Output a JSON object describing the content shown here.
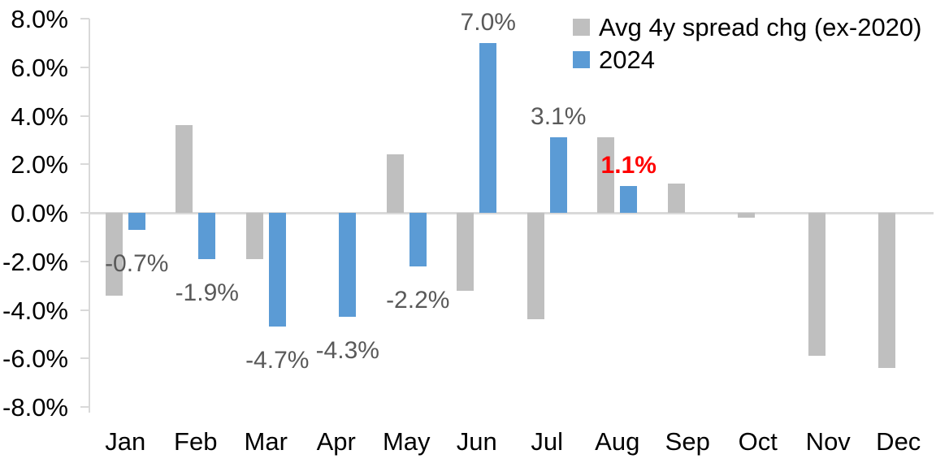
{
  "chart_data": {
    "type": "bar",
    "categories": [
      "Jan",
      "Feb",
      "Mar",
      "Apr",
      "May",
      "Jun",
      "Jul",
      "Aug",
      "Sep",
      "Oct",
      "Nov",
      "Dec"
    ],
    "series": [
      {
        "name": "Avg 4y spread chg (ex-2020)",
        "color": "#BFBFBF",
        "values": [
          -3.4,
          3.6,
          -1.9,
          0,
          2.4,
          -3.2,
          -4.4,
          3.1,
          1.2,
          -0.2,
          -5.9,
          -6.4
        ]
      },
      {
        "name": "2024",
        "color": "#5B9BD5",
        "values": [
          -0.7,
          -1.9,
          -4.7,
          -4.3,
          -2.2,
          7.0,
          3.1,
          1.1,
          null,
          null,
          null,
          null
        ],
        "data_labels": [
          {
            "text": "-0.7%"
          },
          {
            "text": "-1.9%"
          },
          {
            "text": "-4.7%"
          },
          {
            "text": "-4.3%"
          },
          {
            "text": "-2.2%"
          },
          {
            "text": "7.0%"
          },
          {
            "text": "3.1%"
          },
          {
            "text": "1.1%",
            "color": "#FF0000",
            "bold": true
          },
          null,
          null,
          null,
          null
        ]
      }
    ],
    "y_axis": {
      "min": -8,
      "max": 8,
      "ticks": [
        {
          "value": 8,
          "label": "8.0%"
        },
        {
          "value": 6,
          "label": "6.0%"
        },
        {
          "value": 4,
          "label": "4.0%"
        },
        {
          "value": 2,
          "label": "2.0%"
        },
        {
          "value": 0,
          "label": "0.0%"
        },
        {
          "value": -2,
          "label": "-2.0%"
        },
        {
          "value": -4,
          "label": "-4.0%"
        },
        {
          "value": -6,
          "label": "-6.0%"
        },
        {
          "value": -8,
          "label": "-8.0%"
        }
      ]
    },
    "legend_position": "top-right",
    "grid": "off",
    "colors": {
      "axis": "#D9D9D9",
      "data_label": "#595959",
      "highlight_label": "#FF0000",
      "tick_label": "#000000"
    }
  }
}
